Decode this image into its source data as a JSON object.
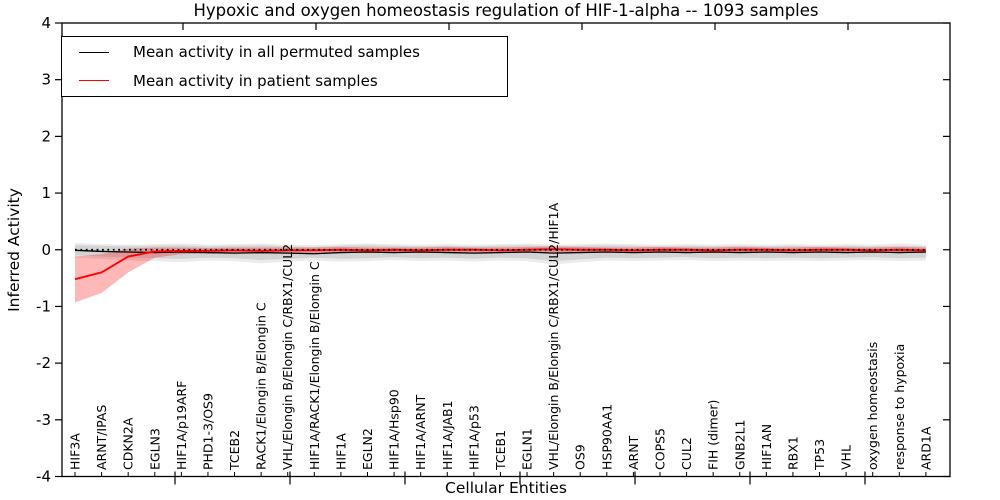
{
  "title": "Hypoxic and oxygen homeostasis regulation of HIF-1-alpha -- 1093 samples",
  "legend": {
    "items": [
      {
        "label": "Mean activity in all permuted samples",
        "color": "#000000"
      },
      {
        "label": "Mean activity in patient samples",
        "color": "#ff0000"
      }
    ]
  },
  "chart_data": {
    "type": "line",
    "title": "Hypoxic and oxygen homeostasis regulation of HIF-1-alpha -- 1093 samples",
    "xlabel": "Cellular Entities",
    "ylabel": "Inferred Activity",
    "ylim": [
      -4,
      4
    ],
    "yticks": [
      -4,
      -3,
      -2,
      -1,
      0,
      1,
      2,
      3,
      4
    ],
    "grid": false,
    "legend_position": "upper left",
    "zero_line": {
      "y": 0,
      "style": "dotted",
      "color": "#000000"
    },
    "categories": [
      "HIF3A",
      "ARNT/IPAS",
      "CDKN2A",
      "EGLN3",
      "HIF1A/p19ARF",
      "PHD1-3/OS9",
      "TCEB2",
      "RACK1/Elongin B/Elongin C",
      "VHL/Elongin B/Elongin C/RBX1/CUL2",
      "HIF1A/RACK1/Elongin B/Elongin C",
      "HIF1A",
      "EGLN2",
      "HIF1A/Hsp90",
      "HIF1A/ARNT",
      "HIF1A/JAB1",
      "HIF1A/p53",
      "TCEB1",
      "EGLN1",
      "VHL/Elongin B/Elongin C/RBX1/CUL2/HIF1A",
      "OS9",
      "HSP90AA1",
      "ARNT",
      "COPS5",
      "CUL2",
      "FIH (dimer)",
      "GNB2L1",
      "HIF1AN",
      "RBX1",
      "TP53",
      "VHL",
      "oxygen homeostasis",
      "response to hypoxia",
      "ARD1A"
    ],
    "series": [
      {
        "name": "Mean activity in all permuted samples",
        "color": "#000000",
        "line_width": 1.3,
        "values": [
          -0.01,
          -0.03,
          -0.04,
          -0.05,
          -0.04,
          -0.05,
          -0.06,
          -0.05,
          -0.06,
          -0.07,
          -0.05,
          -0.04,
          -0.05,
          -0.04,
          -0.05,
          -0.06,
          -0.05,
          -0.04,
          -0.06,
          -0.05,
          -0.04,
          -0.05,
          -0.04,
          -0.05,
          -0.04,
          -0.05,
          -0.04,
          -0.05,
          -0.04,
          -0.05,
          -0.04,
          -0.05,
          -0.04
        ],
        "bands": [
          {
            "opacity": 0.08,
            "upper": [
              0.12,
              0.1,
              0.09,
              0.1,
              0.11,
              0.09,
              0.1,
              0.11,
              0.09,
              0.08,
              0.1,
              0.11,
              0.1,
              0.09,
              0.1,
              0.09,
              0.1,
              0.11,
              0.09,
              0.1,
              0.11,
              0.1,
              0.09,
              0.1,
              0.09,
              0.1,
              0.09,
              0.1,
              0.09,
              0.1,
              0.09,
              0.11,
              0.09
            ],
            "lower": [
              -0.14,
              -0.16,
              -0.19,
              -0.2,
              -0.22,
              -0.19,
              -0.2,
              -0.24,
              -0.21,
              -0.19,
              -0.21,
              -0.2,
              -0.18,
              -0.2,
              -0.19,
              -0.21,
              -0.19,
              -0.2,
              -0.26,
              -0.22,
              -0.19,
              -0.2,
              -0.19,
              -0.18,
              -0.2,
              -0.19,
              -0.2,
              -0.19,
              -0.2,
              -0.19,
              -0.18,
              -0.2,
              -0.19
            ]
          },
          {
            "opacity": 0.1,
            "upper": [
              0.08,
              0.07,
              0.06,
              0.07,
              0.08,
              0.06,
              0.07,
              0.08,
              0.06,
              0.05,
              0.07,
              0.08,
              0.07,
              0.06,
              0.07,
              0.06,
              0.07,
              0.08,
              0.06,
              0.07,
              0.08,
              0.07,
              0.06,
              0.07,
              0.06,
              0.07,
              0.06,
              0.07,
              0.06,
              0.07,
              0.06,
              0.07,
              0.06
            ],
            "lower": [
              -0.1,
              -0.12,
              -0.14,
              -0.15,
              -0.16,
              -0.14,
              -0.15,
              -0.18,
              -0.16,
              -0.14,
              -0.16,
              -0.15,
              -0.13,
              -0.15,
              -0.14,
              -0.16,
              -0.14,
              -0.15,
              -0.2,
              -0.17,
              -0.14,
              -0.15,
              -0.14,
              -0.13,
              -0.15,
              -0.14,
              -0.15,
              -0.14,
              -0.15,
              -0.14,
              -0.13,
              -0.15,
              -0.14
            ]
          }
        ]
      },
      {
        "name": "Mean activity in patient samples",
        "color": "#ff0000",
        "line_width": 1.9,
        "values": [
          -0.52,
          -0.4,
          -0.12,
          -0.03,
          -0.02,
          -0.02,
          -0.01,
          -0.02,
          -0.01,
          -0.01,
          0.0,
          -0.01,
          0.0,
          -0.01,
          0.0,
          0.0,
          -0.01,
          0.0,
          0.01,
          0.0,
          0.0,
          -0.01,
          0.0,
          0.0,
          -0.01,
          0.0,
          0.0,
          -0.01,
          0.0,
          0.0,
          -0.01,
          0.0,
          -0.01
        ],
        "bands": [
          {
            "opacity": 0.28,
            "upper": [
              -0.12,
              -0.08,
              0.02,
              0.04,
              0.04,
              0.03,
              0.04,
              0.04,
              0.04,
              0.04,
              0.05,
              0.04,
              0.04,
              0.04,
              0.05,
              0.04,
              0.04,
              0.05,
              0.06,
              0.05,
              0.04,
              0.04,
              0.05,
              0.04,
              0.04,
              0.05,
              0.04,
              0.04,
              0.05,
              0.04,
              0.04,
              0.05,
              0.04
            ],
            "lower": [
              -0.93,
              -0.76,
              -0.4,
              -0.14,
              -0.08,
              -0.07,
              -0.06,
              -0.07,
              -0.06,
              -0.06,
              -0.05,
              -0.06,
              -0.05,
              -0.06,
              -0.05,
              -0.05,
              -0.06,
              -0.05,
              -0.05,
              -0.05,
              -0.05,
              -0.06,
              -0.05,
              -0.05,
              -0.06,
              -0.05,
              -0.05,
              -0.06,
              -0.05,
              -0.05,
              -0.06,
              -0.05,
              -0.06
            ]
          }
        ]
      }
    ]
  }
}
